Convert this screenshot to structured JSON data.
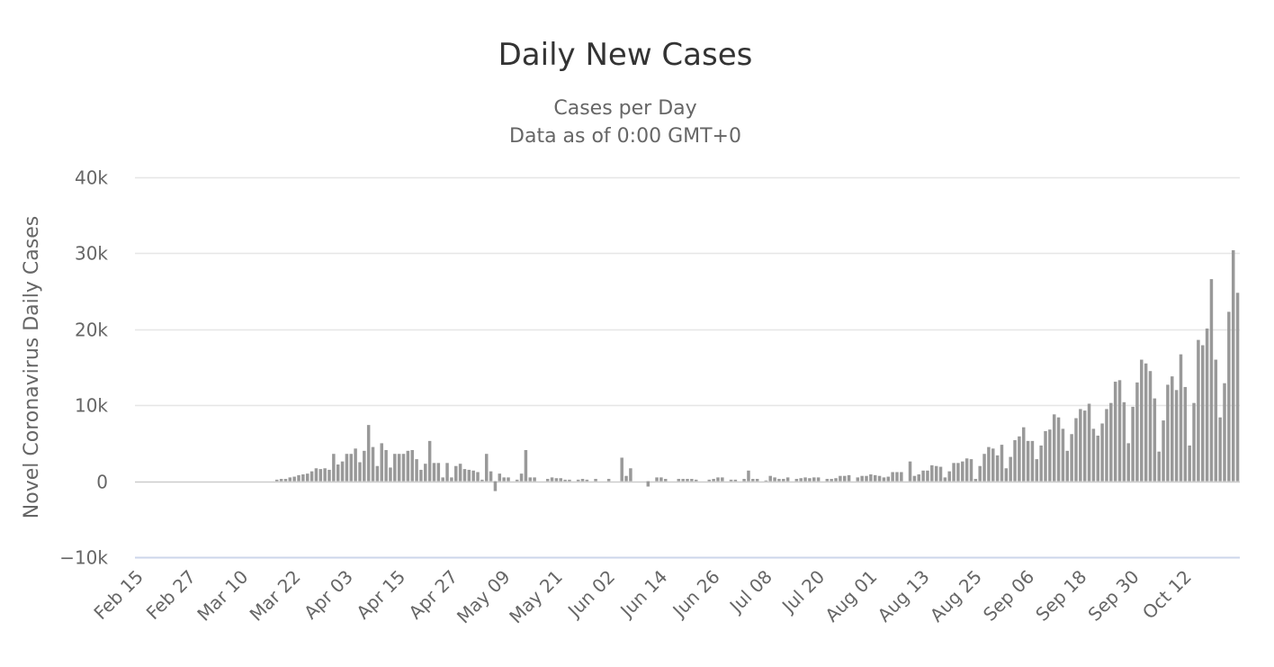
{
  "chart_data": {
    "type": "bar",
    "title": "Daily New Cases",
    "subtitle": [
      "Cases per Day",
      "Data as of 0:00 GMT+0"
    ],
    "ylabel": "Novel Coronavirus Daily Cases",
    "xlabel": "",
    "ylim": [
      -10000,
      40000
    ],
    "y_ticks": [
      -10000,
      0,
      10000,
      20000,
      30000,
      40000
    ],
    "y_tick_labels": [
      "−10k",
      "0",
      "10k",
      "20k",
      "30k",
      "40k"
    ],
    "x_tick_labels": [
      "Feb 15",
      "Feb 27",
      "Mar 10",
      "Mar 22",
      "Apr 03",
      "Apr 15",
      "Apr 27",
      "May 09",
      "May 21",
      "Jun 02",
      "Jun 14",
      "Jun 26",
      "Jul 08",
      "Jul 20",
      "Aug 01",
      "Aug 13",
      "Aug 25",
      "Sep 06",
      "Sep 18",
      "Sep 30",
      "Oct 12"
    ],
    "x_tick_step_days": 12,
    "grid": true,
    "legend": "none",
    "bar_color": "#999999",
    "grid_color": "#e6e6e6",
    "zero_line_color": "#cccccc",
    "axis_color": "#ccd6eb",
    "categories_start": "Feb 15",
    "values": [
      0,
      0,
      0,
      0,
      0,
      0,
      0,
      0,
      0,
      0,
      0,
      0,
      0,
      0,
      0,
      0,
      0,
      0,
      0,
      0,
      0,
      0,
      0,
      0,
      0,
      0,
      0,
      0,
      0,
      0,
      0,
      0,
      200,
      300,
      300,
      500,
      600,
      800,
      900,
      1000,
      1300,
      1700,
      1600,
      1700,
      1500,
      3600,
      2200,
      2600,
      3600,
      3600,
      4300,
      2500,
      4000,
      7400,
      4500,
      2000,
      5000,
      4100,
      1800,
      3600,
      3600,
      3600,
      4000,
      4100,
      2900,
      1500,
      2300,
      5300,
      2400,
      2400,
      500,
      2400,
      500,
      2000,
      2300,
      1600,
      1500,
      1400,
      1200,
      200,
      3600,
      1300,
      -1300,
      1000,
      500,
      500,
      0,
      200,
      1000,
      4100,
      500,
      500,
      0,
      0,
      300,
      500,
      400,
      400,
      200,
      200,
      0,
      200,
      300,
      200,
      0,
      300,
      0,
      0,
      300,
      0,
      0,
      3100,
      700,
      1700,
      0,
      0,
      0,
      -700,
      0,
      500,
      500,
      300,
      0,
      0,
      300,
      300,
      300,
      300,
      200,
      0,
      0,
      200,
      300,
      500,
      500,
      0,
      200,
      200,
      0,
      300,
      1400,
      300,
      300,
      0,
      100,
      700,
      500,
      300,
      300,
      500,
      0,
      300,
      400,
      500,
      400,
      500,
      500,
      0,
      300,
      300,
      400,
      700,
      700,
      800,
      0,
      500,
      700,
      700,
      900,
      800,
      700,
      500,
      600,
      1200,
      1200,
      1200,
      0,
      2600,
      700,
      900,
      1400,
      1400,
      2100,
      2000,
      1900,
      500,
      1300,
      2400,
      2400,
      2600,
      3000,
      2900,
      300,
      2000,
      3600,
      4500,
      4300,
      3400,
      4800,
      1700,
      3200,
      5400,
      5900,
      7100,
      5300,
      5300,
      2900,
      4700,
      6600,
      6800,
      8800,
      8400,
      6900,
      4000,
      6200,
      8300,
      9500,
      9300,
      10200,
      6900,
      6000,
      7600,
      9500,
      10300,
      13100,
      13300,
      10400,
      5000,
      9800,
      13000,
      16000,
      15500,
      14500,
      10900,
      3900,
      8000,
      12700,
      13800,
      12000,
      16700,
      12400,
      4700,
      10300,
      18600,
      17900,
      20100,
      26600,
      16000,
      8400,
      12900,
      22300,
      30400,
      24800
    ]
  }
}
